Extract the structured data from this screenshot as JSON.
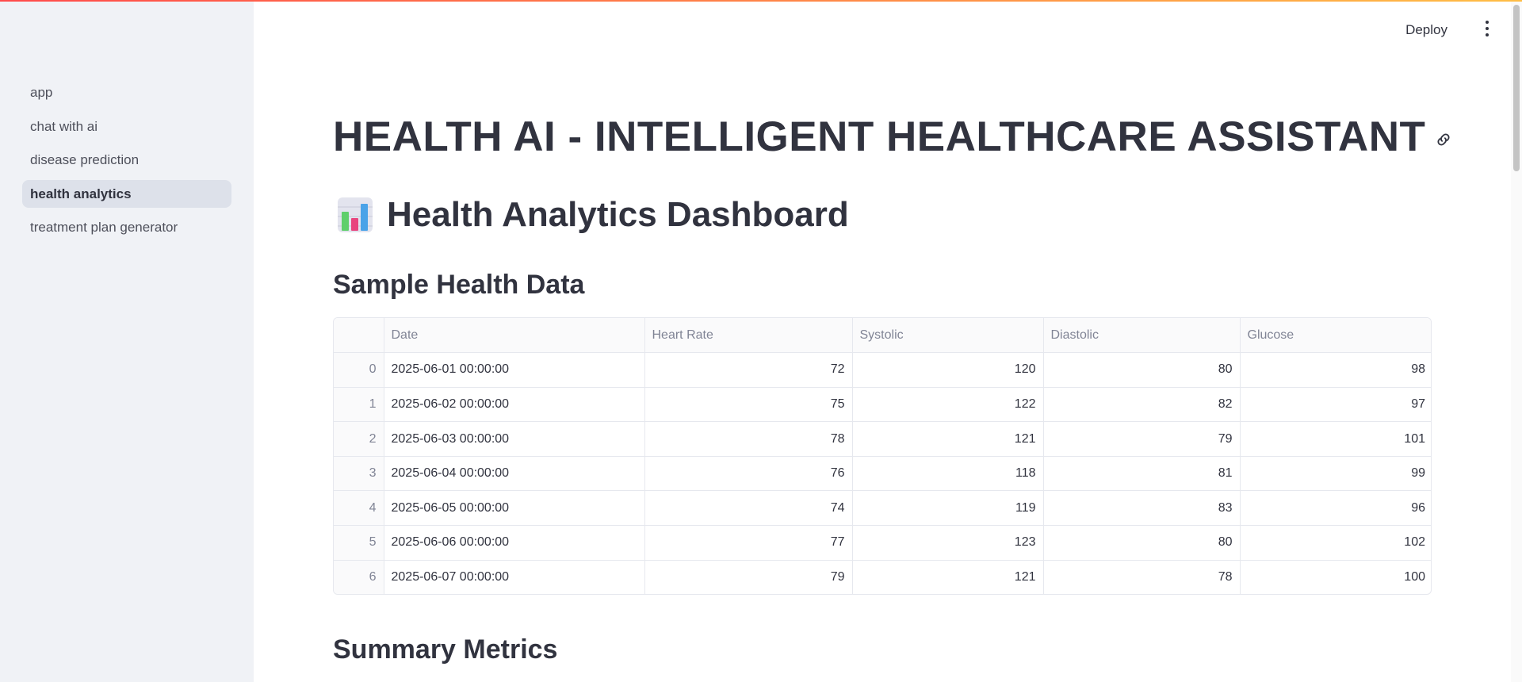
{
  "sidebar": {
    "items": [
      {
        "label": "app"
      },
      {
        "label": "chat with ai"
      },
      {
        "label": "disease prediction"
      },
      {
        "label": "health analytics",
        "active": true
      },
      {
        "label": "treatment plan generator"
      }
    ]
  },
  "header": {
    "deploy_label": "Deploy"
  },
  "main": {
    "title": "HEALTH AI - INTELLIGENT HEALTHCARE ASSISTANT",
    "dashboard_heading": "Health Analytics Dashboard",
    "sample_heading": "Sample Health Data",
    "summary_heading": "Summary Metrics",
    "table": {
      "columns": [
        "",
        "Date",
        "Heart Rate",
        "Systolic",
        "Diastolic",
        "Glucose"
      ],
      "rows": [
        [
          "0",
          "2025-06-01 00:00:00",
          "72",
          "120",
          "80",
          "98"
        ],
        [
          "1",
          "2025-06-02 00:00:00",
          "75",
          "122",
          "82",
          "97"
        ],
        [
          "2",
          "2025-06-03 00:00:00",
          "78",
          "121",
          "79",
          "101"
        ],
        [
          "3",
          "2025-06-04 00:00:00",
          "76",
          "118",
          "81",
          "99"
        ],
        [
          "4",
          "2025-06-05 00:00:00",
          "74",
          "119",
          "83",
          "96"
        ],
        [
          "5",
          "2025-06-06 00:00:00",
          "77",
          "123",
          "80",
          "102"
        ],
        [
          "6",
          "2025-06-07 00:00:00",
          "79",
          "121",
          "78",
          "100"
        ]
      ]
    }
  },
  "colors": {
    "sidebar_bg": "#f0f2f6",
    "active_item_bg": "#dde1ea",
    "text": "#31333f",
    "accent_gradient_start": "#ff4b4b",
    "accent_gradient_end": "#ffbd45"
  },
  "icons": {
    "title_link": "link-icon",
    "dashboard": "bar-chart-icon",
    "menu": "kebab-menu-icon"
  }
}
